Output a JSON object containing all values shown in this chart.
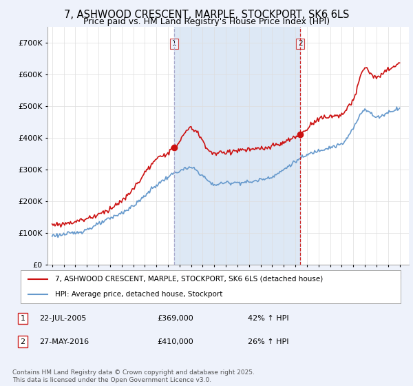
{
  "title": "7, ASHWOOD CRESCENT, MARPLE, STOCKPORT, SK6 6LS",
  "subtitle": "Price paid vs. HM Land Registry's House Price Index (HPI)",
  "ytick_values": [
    0,
    100000,
    200000,
    300000,
    400000,
    500000,
    600000,
    700000
  ],
  "ylim": [
    0,
    750000
  ],
  "xlim_start": 1994.6,
  "xlim_end": 2025.8,
  "hpi_color": "#6699cc",
  "price_color": "#cc1111",
  "vline1_color": "#aaaacc",
  "vline2_color": "#cc2222",
  "shade_color": "#dde8f5",
  "legend_label_price": "7, ASHWOOD CRESCENT, MARPLE, STOCKPORT, SK6 6LS (detached house)",
  "legend_label_hpi": "HPI: Average price, detached house, Stockport",
  "sale1_date_label": "22-JUL-2005",
  "sale1_price_label": "£369,000",
  "sale1_hpi_label": "42% ↑ HPI",
  "sale1_x": 2005.55,
  "sale1_price": 369000,
  "sale2_date_label": "27-MAY-2016",
  "sale2_price_label": "£410,000",
  "sale2_hpi_label": "26% ↑ HPI",
  "sale2_x": 2016.42,
  "sale2_price": 410000,
  "footnote": "Contains HM Land Registry data © Crown copyright and database right 2025.\nThis data is licensed under the Open Government Licence v3.0.",
  "background_color": "#eef2fb",
  "plot_bg_color": "#ffffff",
  "title_fontsize": 10.5,
  "subtitle_fontsize": 9
}
